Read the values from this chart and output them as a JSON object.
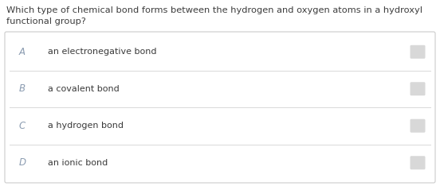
{
  "question_line1": "Which type of chemical bond forms between the hydrogen and oxygen atoms in a hydroxyl",
  "question_line2": "functional group?",
  "question_color": "#3d3d3d",
  "options": [
    {
      "label": "A",
      "text": "an electronegative bond"
    },
    {
      "label": "B",
      "text": "a covalent bond"
    },
    {
      "label": "C",
      "text": "a hydrogen bond"
    },
    {
      "label": "D",
      "text": "an ionic bond"
    }
  ],
  "label_color": "#8a9bb0",
  "text_color": "#3a3a3a",
  "bg_color": "#ffffff",
  "separator_color": "#d8d8d8",
  "answer_box_color": "#d8d8d8",
  "outer_box_border": "#cccccc",
  "outer_box_bg": "#ffffff",
  "question_fontsize": 8.2,
  "option_label_fontsize": 8.5,
  "option_text_fontsize": 8.0,
  "fig_width": 5.52,
  "fig_height": 2.34,
  "dpi": 100
}
